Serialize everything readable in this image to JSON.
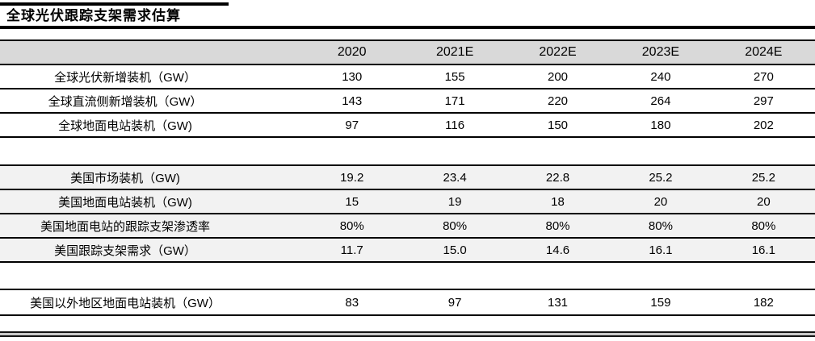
{
  "title": "全球光伏跟踪支架需求估算",
  "chart_data": {
    "type": "table",
    "title": "全球光伏跟踪支架需求估算",
    "columns": [
      "2020",
      "2021E",
      "2022E",
      "2023E",
      "2024E"
    ],
    "rows": [
      {
        "label": "全球光伏新增装机（GW）",
        "values": [
          "130",
          "155",
          "200",
          "240",
          "270"
        ]
      },
      {
        "label": "全球直流侧新增装机（GW）",
        "values": [
          "143",
          "171",
          "220",
          "264",
          "297"
        ]
      },
      {
        "label": "全球地面电站装机（GW)",
        "values": [
          "97",
          "116",
          "150",
          "180",
          "202"
        ]
      },
      {
        "label": "美国市场装机（GW)",
        "values": [
          "19.2",
          "23.4",
          "22.8",
          "25.2",
          "25.2"
        ]
      },
      {
        "label": "美国地面电站装机（GW)",
        "values": [
          "15",
          "19",
          "18",
          "20",
          "20"
        ]
      },
      {
        "label": "美国地面电站的跟踪支架渗透率",
        "values": [
          "80%",
          "80%",
          "80%",
          "80%",
          "80%"
        ]
      },
      {
        "label": "美国跟踪支架需求（GW）",
        "values": [
          "11.7",
          "15.0",
          "14.6",
          "16.1",
          "16.1"
        ]
      },
      {
        "label": "美国以外地区地面电站装机（GW）",
        "values": [
          "83",
          "97",
          "131",
          "159",
          "182"
        ]
      }
    ],
    "layout": {
      "grid": "horizontal-lines-only",
      "groups": [
        [
          0,
          1,
          2
        ],
        [
          3,
          4,
          5,
          6
        ],
        [
          7
        ]
      ]
    },
    "colors": {
      "header_bg": "#d9d9d9",
      "shaded_row_bg": "#f2f2f2",
      "line": "#000000"
    }
  }
}
